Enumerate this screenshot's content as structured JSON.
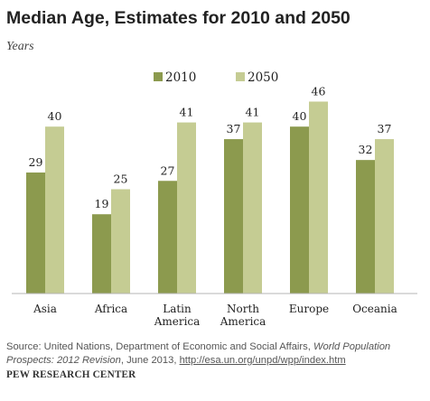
{
  "chart_data": {
    "type": "bar",
    "title": "Median Age, Estimates for 2010 and 2050",
    "subtitle": "Years",
    "categories": [
      "Asia",
      "Africa",
      "Latin America",
      "North America",
      "Europe",
      "Oceania"
    ],
    "category_lines": [
      [
        "Asia"
      ],
      [
        "Africa"
      ],
      [
        "Latin",
        "America"
      ],
      [
        "North",
        "America"
      ],
      [
        "Europe"
      ],
      [
        "Oceania"
      ]
    ],
    "series": [
      {
        "name": "2010",
        "values": [
          29,
          19,
          27,
          37,
          40,
          32
        ],
        "color": "#8c9a4e"
      },
      {
        "name": "2050",
        "values": [
          40,
          25,
          41,
          41,
          46,
          37
        ],
        "color": "#c5cc93"
      }
    ],
    "ylim": [
      0,
      50
    ],
    "grid": false,
    "legend_position": "top-center",
    "data_labels": true
  },
  "source": {
    "prefix": "Source: United Nations, Department of Economic and Social Affairs, ",
    "italic": "World Population Prospects: 2012 Revision",
    "suffix": ", June 2013, ",
    "link": "http://esa.un.org/unpd/wpp/index.htm"
  },
  "credit": "PEW RESEARCH CENTER"
}
